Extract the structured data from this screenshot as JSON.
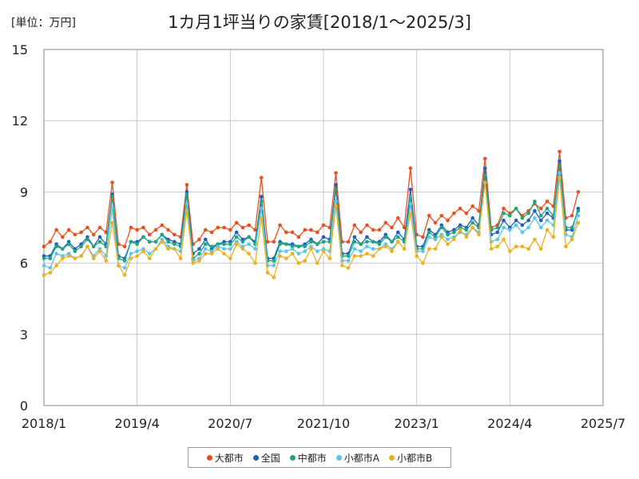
{
  "unit_label": "[単位：万円]",
  "chart_data": {
    "type": "line",
    "title": "1カ月1坪当りの家賃[2018/1～2025/3]",
    "ylabel": "",
    "xlabel": "",
    "ylim": [
      0,
      15
    ],
    "yticks": [
      0,
      3,
      6,
      9,
      12,
      15
    ],
    "xlim": [
      0,
      90
    ],
    "xticks": [
      {
        "pos": 0,
        "label": "2018/1"
      },
      {
        "pos": 15,
        "label": "2019/4"
      },
      {
        "pos": 30,
        "label": "2020/7"
      },
      {
        "pos": 45,
        "label": "2021/10"
      },
      {
        "pos": 60,
        "label": "2023/1"
      },
      {
        "pos": 75,
        "label": "2024/4"
      },
      {
        "pos": 90,
        "label": "2025/7"
      }
    ],
    "grid": true,
    "legend_position": "bottom",
    "series": [
      {
        "name": "大都市",
        "color": "#e8501f",
        "values": [
          6.7,
          6.9,
          7.4,
          7.1,
          7.4,
          7.2,
          7.3,
          7.5,
          7.2,
          7.5,
          7.3,
          9.4,
          6.8,
          6.7,
          7.5,
          7.4,
          7.5,
          7.2,
          7.4,
          7.6,
          7.4,
          7.2,
          7.1,
          9.3,
          6.8,
          7.0,
          7.4,
          7.3,
          7.5,
          7.5,
          7.4,
          7.7,
          7.5,
          7.6,
          7.4,
          9.6,
          6.9,
          6.9,
          7.6,
          7.3,
          7.3,
          7.1,
          7.4,
          7.4,
          7.3,
          7.6,
          7.5,
          9.8,
          6.9,
          6.9,
          7.6,
          7.3,
          7.6,
          7.4,
          7.4,
          7.7,
          7.5,
          7.9,
          7.5,
          10.0,
          7.2,
          7.1,
          8.0,
          7.7,
          8.0,
          7.8,
          8.1,
          8.3,
          8.1,
          8.4,
          8.2,
          10.4,
          7.5,
          7.6,
          8.3,
          8.1,
          8.3,
          8.0,
          8.2,
          8.5,
          8.3,
          8.6,
          8.4,
          10.7,
          7.9,
          8.0,
          9.0
        ]
      },
      {
        "name": "全国",
        "color": "#1f5fbf",
        "values": [
          6.3,
          6.3,
          6.8,
          6.6,
          6.9,
          6.6,
          6.8,
          7.1,
          6.7,
          7.1,
          6.8,
          8.9,
          6.3,
          6.2,
          6.9,
          6.9,
          7.1,
          6.9,
          6.9,
          7.2,
          7.0,
          6.9,
          6.8,
          9.0,
          6.4,
          6.6,
          7.0,
          6.6,
          6.8,
          6.9,
          6.9,
          7.3,
          7.0,
          7.1,
          6.9,
          8.8,
          6.2,
          6.2,
          6.9,
          6.8,
          6.8,
          6.7,
          6.8,
          7.0,
          6.8,
          7.1,
          7.0,
          9.3,
          6.4,
          6.4,
          7.1,
          6.8,
          7.1,
          6.9,
          6.9,
          7.2,
          6.9,
          7.3,
          7.0,
          9.1,
          6.7,
          6.7,
          7.4,
          7.2,
          7.6,
          7.3,
          7.4,
          7.6,
          7.5,
          7.9,
          7.6,
          10.0,
          7.2,
          7.3,
          7.8,
          7.5,
          7.8,
          7.6,
          7.8,
          8.2,
          7.8,
          8.1,
          7.9,
          10.3,
          7.4,
          7.4,
          8.3
        ]
      },
      {
        "name": "中都市",
        "color": "#1fa67a",
        "values": [
          6.2,
          6.2,
          6.7,
          6.6,
          6.8,
          6.5,
          6.7,
          7.0,
          6.7,
          6.9,
          6.7,
          8.8,
          6.2,
          6.1,
          6.9,
          6.8,
          7.1,
          6.9,
          6.9,
          7.2,
          6.9,
          6.8,
          6.7,
          8.9,
          6.2,
          6.4,
          6.8,
          6.7,
          6.8,
          6.8,
          6.8,
          7.1,
          6.9,
          7.1,
          6.8,
          8.6,
          6.1,
          6.1,
          6.8,
          6.8,
          6.7,
          6.7,
          6.7,
          6.9,
          6.8,
          6.9,
          6.9,
          9.1,
          6.3,
          6.3,
          6.9,
          6.8,
          6.9,
          6.9,
          6.8,
          7.1,
          6.9,
          7.1,
          6.9,
          8.7,
          6.6,
          6.6,
          7.3,
          7.1,
          7.5,
          7.2,
          7.3,
          7.5,
          7.4,
          7.7,
          7.5,
          9.7,
          7.4,
          7.5,
          8.1,
          8.0,
          8.3,
          7.9,
          8.1,
          8.6,
          8.0,
          8.3,
          8.0,
          10.1,
          7.5,
          7.5,
          8.2
        ]
      },
      {
        "name": "小都市A",
        "color": "#5bc6ea",
        "values": [
          5.9,
          5.8,
          6.4,
          6.3,
          6.4,
          6.2,
          6.3,
          6.7,
          6.3,
          6.6,
          6.3,
          8.3,
          5.9,
          5.8,
          6.4,
          6.5,
          6.6,
          6.4,
          6.6,
          7.0,
          6.7,
          6.6,
          6.5,
          8.5,
          6.1,
          6.2,
          6.6,
          6.5,
          6.7,
          6.6,
          6.6,
          6.9,
          6.7,
          6.8,
          6.6,
          8.3,
          5.9,
          5.9,
          6.5,
          6.5,
          6.6,
          6.4,
          6.5,
          6.7,
          6.5,
          6.6,
          6.5,
          8.6,
          6.1,
          6.1,
          6.6,
          6.5,
          6.7,
          6.6,
          6.6,
          6.8,
          6.6,
          6.9,
          6.6,
          8.5,
          6.5,
          6.5,
          7.1,
          7.0,
          7.2,
          7.0,
          7.1,
          7.3,
          7.2,
          7.5,
          7.3,
          9.4,
          6.9,
          7.0,
          7.5,
          7.4,
          7.6,
          7.3,
          7.5,
          7.9,
          7.5,
          7.8,
          7.6,
          9.8,
          7.2,
          7.1,
          8.0
        ]
      },
      {
        "name": "小都市B",
        "color": "#f0b01d",
        "values": [
          5.5,
          5.6,
          5.9,
          6.2,
          6.3,
          6.2,
          6.3,
          6.7,
          6.2,
          6.5,
          6.1,
          7.7,
          5.9,
          5.5,
          6.2,
          6.3,
          6.5,
          6.2,
          6.6,
          6.9,
          6.6,
          6.6,
          6.2,
          8.2,
          6.0,
          6.1,
          6.4,
          6.4,
          6.6,
          6.4,
          6.2,
          6.8,
          6.6,
          6.4,
          6.0,
          7.9,
          5.6,
          5.4,
          6.3,
          6.2,
          6.4,
          6.0,
          6.1,
          6.6,
          6.0,
          6.5,
          6.2,
          8.4,
          5.9,
          5.8,
          6.3,
          6.3,
          6.4,
          6.3,
          6.6,
          6.7,
          6.5,
          6.9,
          6.6,
          8.1,
          6.3,
          6.0,
          6.6,
          6.6,
          7.1,
          6.8,
          7.0,
          7.4,
          7.1,
          7.5,
          7.2,
          9.4,
          6.6,
          6.7,
          7.0,
          6.5,
          6.7,
          6.7,
          6.6,
          7.0,
          6.6,
          7.4,
          7.1,
          9.6,
          6.7,
          7.0,
          7.7
        ]
      }
    ]
  }
}
